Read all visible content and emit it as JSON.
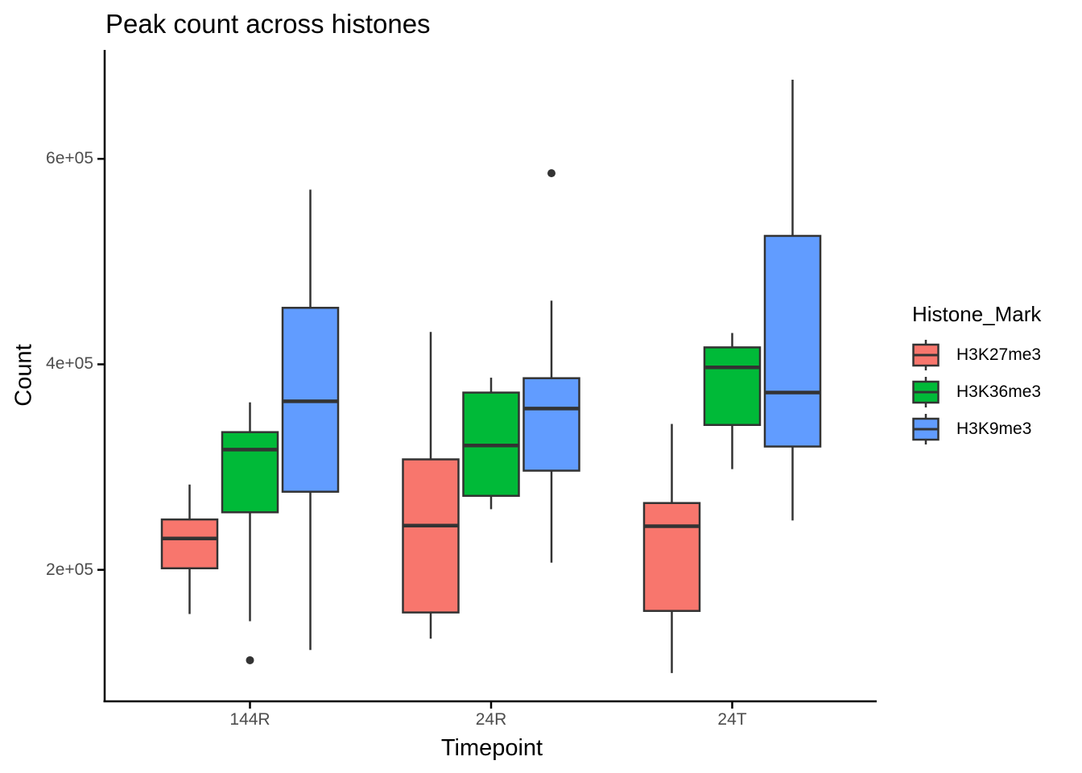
{
  "colors": {
    "axis": "#000000",
    "tick_label": "#4d4d4d",
    "box_border": "#333333",
    "outlier": "#333333"
  },
  "legend": {
    "title": "Histone_Mark"
  },
  "chart_data": {
    "type": "boxplot",
    "title": "Peak count across histones",
    "xlabel": "Timepoint",
    "ylabel": "Count",
    "categories": [
      "144R",
      "24R",
      "24T"
    ],
    "ylim": [
      72000,
      706000
    ],
    "yticks": [
      200000,
      400000,
      600000
    ],
    "ytick_labels": [
      "2e+05",
      "4e+05",
      "6e+05"
    ],
    "grid": false,
    "legend_title": "Histone_Mark",
    "legend_position": "right",
    "series": [
      {
        "name": "H3K27me3",
        "color": "#F8766D",
        "boxes": [
          {
            "category": "144R",
            "whisker_low": 157000,
            "q1": 201500,
            "median": 230500,
            "q3": 249000,
            "whisker_high": 283000,
            "outliers": []
          },
          {
            "category": "24R",
            "whisker_low": 133000,
            "q1": 158500,
            "median": 243000,
            "q3": 307500,
            "whisker_high": 431500,
            "outliers": []
          },
          {
            "category": "24T",
            "whisker_low": 99500,
            "q1": 160000,
            "median": 242500,
            "q3": 265000,
            "whisker_high": 342000,
            "outliers": []
          }
        ]
      },
      {
        "name": "H3K36me3",
        "color": "#00BA38",
        "boxes": [
          {
            "category": "144R",
            "whisker_low": 150000,
            "q1": 256000,
            "median": 317000,
            "q3": 334000,
            "whisker_high": 363000,
            "outliers": [
              112000
            ]
          },
          {
            "category": "24R",
            "whisker_low": 259000,
            "q1": 272000,
            "median": 321000,
            "q3": 372500,
            "whisker_high": 387000,
            "outliers": []
          },
          {
            "category": "24T",
            "whisker_low": 298000,
            "q1": 341000,
            "median": 397000,
            "q3": 416500,
            "whisker_high": 430500,
            "outliers": []
          }
        ]
      },
      {
        "name": "H3K9me3",
        "color": "#619CFF",
        "boxes": [
          {
            "category": "144R",
            "whisker_low": 122000,
            "q1": 276000,
            "median": 364000,
            "q3": 455000,
            "whisker_high": 570000,
            "outliers": []
          },
          {
            "category": "24R",
            "whisker_low": 207000,
            "q1": 296500,
            "median": 357000,
            "q3": 386500,
            "whisker_high": 462000,
            "outliers": [
              586000
            ]
          },
          {
            "category": "24T",
            "whisker_low": 248000,
            "q1": 320000,
            "median": 372500,
            "q3": 525000,
            "whisker_high": 677000,
            "outliers": []
          }
        ]
      }
    ]
  }
}
